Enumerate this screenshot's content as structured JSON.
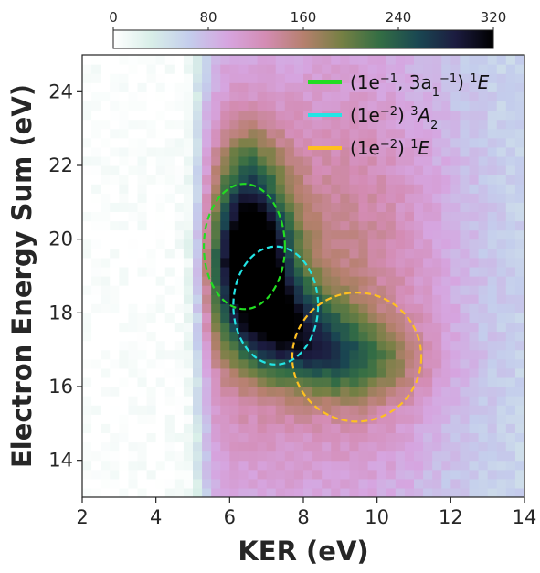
{
  "chart_data": {
    "type": "heatmap",
    "xlabel": "KER (eV)",
    "ylabel": "Electron Energy Sum (eV)",
    "xlim": [
      2,
      14
    ],
    "ylim": [
      13,
      25
    ],
    "x_ticks": [
      "2",
      "4",
      "6",
      "8",
      "10",
      "12",
      "14"
    ],
    "y_ticks": [
      "14",
      "16",
      "18",
      "20",
      "22",
      "24"
    ],
    "colorbar": {
      "range": [
        0,
        320
      ],
      "ticks": [
        "0",
        "80",
        "160",
        "240",
        "320"
      ],
      "colormap": "cubehelix_r",
      "position": "top"
    },
    "heatmap_peak": {
      "center_ker": 6.8,
      "center_sum": 19.4,
      "max_count": 320
    },
    "legend_position": "top-right",
    "series": [
      {
        "name_html": "(1e<tspan baseline-shift=\"super\" font-size=\"13\">−1</tspan>, 3a<tspan baseline-shift=\"sub\" font-size=\"13\">1</tspan><tspan baseline-shift=\"super\" font-size=\"13\">−1</tspan>) <tspan baseline-shift=\"super\" font-size=\"13\">1</tspan><tspan font-style=\"italic\">E</tspan>",
        "color": "#22dd22",
        "ellipse": {
          "center_ker": 6.4,
          "center_sum": 19.8,
          "half_width_ker": 1.1,
          "half_height_sum": 1.7
        }
      },
      {
        "name_html": "(1e<tspan baseline-shift=\"super\" font-size=\"13\">−2</tspan>) <tspan baseline-shift=\"super\" font-size=\"13\">3</tspan><tspan font-style=\"italic\">A</tspan><tspan baseline-shift=\"sub\" font-size=\"13\">2</tspan>",
        "color": "#22e5e5",
        "ellipse": {
          "center_ker": 7.25,
          "center_sum": 18.2,
          "half_width_ker": 1.15,
          "half_height_sum": 1.6
        }
      },
      {
        "name_html": "(1e<tspan baseline-shift=\"super\" font-size=\"13\">−2</tspan>) <tspan baseline-shift=\"super\" font-size=\"13\">1</tspan><tspan font-style=\"italic\">E</tspan>",
        "color": "#ffc020",
        "ellipse": {
          "center_ker": 9.45,
          "center_sum": 16.8,
          "half_width_ker": 1.75,
          "half_height_sum": 1.75
        }
      }
    ]
  }
}
